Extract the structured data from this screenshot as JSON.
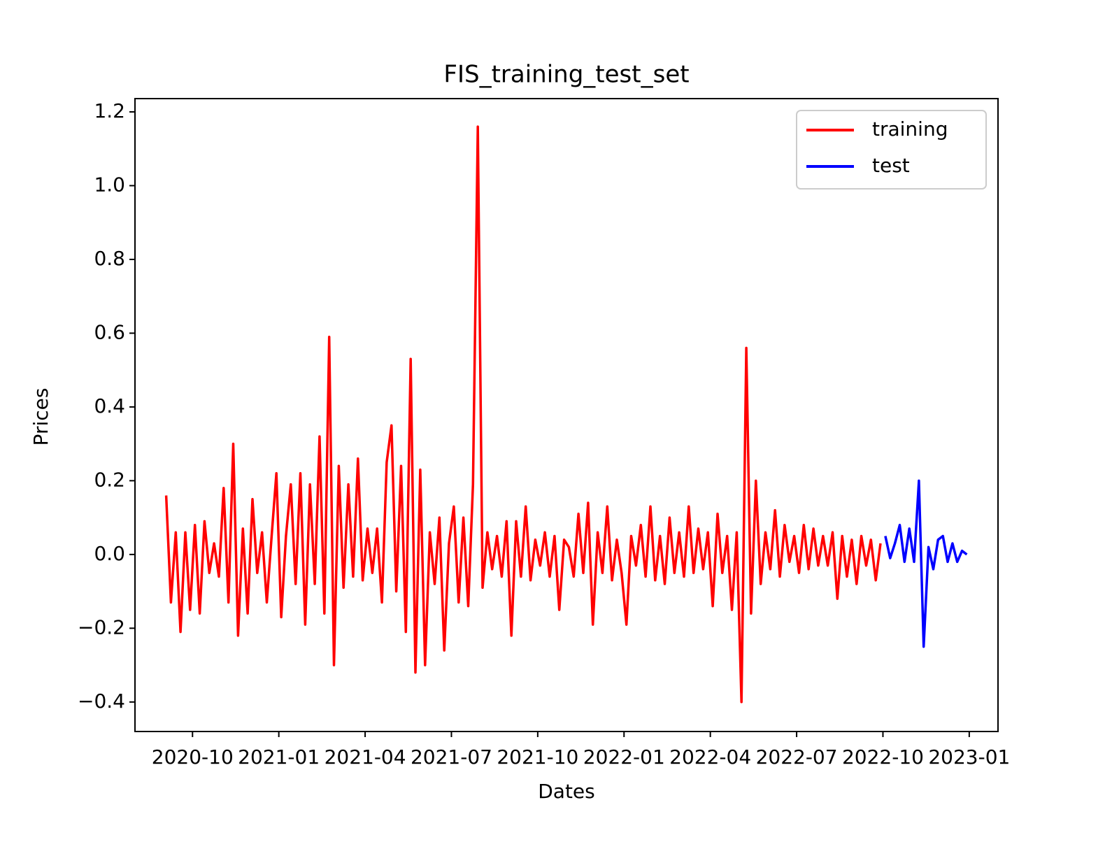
{
  "chart_data": {
    "type": "line",
    "title": "FIS_training_test_set",
    "xlabel": "Dates",
    "ylabel": "Prices",
    "xlim": [
      "2020-08",
      "2023-02"
    ],
    "xticks": [
      "2020-10",
      "2021-01",
      "2021-04",
      "2021-07",
      "2021-10",
      "2022-01",
      "2022-04",
      "2022-07",
      "2022-10",
      "2023-01"
    ],
    "ylim": [
      -0.48,
      1.236
    ],
    "yticks": [
      {
        "value": -0.4,
        "label": "−0.4"
      },
      {
        "value": -0.2,
        "label": "−0.2"
      },
      {
        "value": 0,
        "label": "0.0"
      },
      0.2,
      0.4,
      0.6,
      0.8,
      {
        "value": 1,
        "label": "1.0"
      },
      1.2
    ],
    "legend": "upper right",
    "series": [
      {
        "name": "training",
        "color": "#ff0000",
        "x": [
          "2020-09",
          "2020-09",
          "2020-09",
          "2020-09",
          "2020-09",
          "2020-09",
          "2020-10",
          "2020-10",
          "2020-10",
          "2020-10",
          "2020-10",
          "2020-10",
          "2020-11",
          "2020-11",
          "2020-11",
          "2020-11",
          "2020-11",
          "2020-11",
          "2020-12",
          "2020-12",
          "2020-12",
          "2020-12",
          "2020-12",
          "2020-12",
          "2021-01",
          "2021-01",
          "2021-01",
          "2021-01",
          "2021-01",
          "2021-01",
          "2021-02",
          "2021-02",
          "2021-02",
          "2021-02",
          "2021-02",
          "2021-02",
          "2021-03",
          "2021-03",
          "2021-03",
          "2021-03",
          "2021-03",
          "2021-03",
          "2021-04",
          "2021-04",
          "2021-04",
          "2021-04",
          "2021-04",
          "2021-04",
          "2021-05",
          "2021-05",
          "2021-05",
          "2021-05",
          "2021-05",
          "2021-05",
          "2021-06",
          "2021-06",
          "2021-06",
          "2021-06",
          "2021-06",
          "2021-06",
          "2021-07",
          "2021-07",
          "2021-07",
          "2021-07",
          "2021-07",
          "2021-07",
          "2021-08",
          "2021-08",
          "2021-08",
          "2021-08",
          "2021-08",
          "2021-08",
          "2021-09",
          "2021-09",
          "2021-09",
          "2021-09",
          "2021-09",
          "2021-09",
          "2021-10",
          "2021-10",
          "2021-10",
          "2021-10",
          "2021-10",
          "2021-10",
          "2021-11",
          "2021-11",
          "2021-11",
          "2021-11",
          "2021-11",
          "2021-11",
          "2021-12",
          "2021-12",
          "2021-12",
          "2021-12",
          "2021-12",
          "2021-12",
          "2022-01",
          "2022-01",
          "2022-01",
          "2022-01",
          "2022-01",
          "2022-01",
          "2022-02",
          "2022-02",
          "2022-02",
          "2022-02",
          "2022-02",
          "2022-02",
          "2022-03",
          "2022-03",
          "2022-03",
          "2022-03",
          "2022-03",
          "2022-03",
          "2022-04",
          "2022-04",
          "2022-04",
          "2022-04",
          "2022-04",
          "2022-04",
          "2022-05",
          "2022-05",
          "2022-05",
          "2022-05",
          "2022-05",
          "2022-05",
          "2022-06",
          "2022-06",
          "2022-06",
          "2022-06",
          "2022-06",
          "2022-06",
          "2022-07",
          "2022-07",
          "2022-07",
          "2022-07",
          "2022-07",
          "2022-07",
          "2022-08",
          "2022-08",
          "2022-08",
          "2022-08",
          "2022-08",
          "2022-08",
          "2022-09",
          "2022-09",
          "2022-09",
          "2022-09",
          "2022-09",
          "2022-09"
        ],
        "values": [
          0.16,
          -0.13,
          0.06,
          -0.21,
          0.06,
          -0.15,
          0.08,
          -0.16,
          0.09,
          -0.05,
          0.03,
          -0.06,
          0.18,
          -0.13,
          0.3,
          -0.22,
          0.07,
          -0.16,
          0.15,
          -0.05,
          0.06,
          -0.13,
          0.05,
          0.22,
          -0.17,
          0.05,
          0.19,
          -0.08,
          0.22,
          -0.19,
          0.19,
          -0.08,
          0.32,
          -0.16,
          0.59,
          -0.3,
          0.24,
          -0.09,
          0.19,
          -0.06,
          0.26,
          -0.07,
          0.07,
          -0.05,
          0.07,
          -0.13,
          0.25,
          0.35,
          -0.1,
          0.24,
          -0.21,
          0.53,
          -0.32,
          0.23,
          -0.3,
          0.06,
          -0.08,
          0.1,
          -0.26,
          0.03,
          0.13,
          -0.13,
          0.1,
          -0.14,
          0.19,
          1.16,
          -0.09,
          0.06,
          -0.04,
          0.05,
          -0.06,
          0.09,
          -0.22,
          0.09,
          -0.06,
          0.13,
          -0.07,
          0.04,
          -0.03,
          0.06,
          -0.06,
          0.05,
          -0.15,
          0.04,
          0.02,
          -0.06,
          0.11,
          -0.05,
          0.14,
          -0.19,
          0.06,
          -0.05,
          0.13,
          -0.07,
          0.04,
          -0.05,
          -0.19,
          0.05,
          -0.03,
          0.08,
          -0.06,
          0.13,
          -0.07,
          0.05,
          -0.08,
          0.1,
          -0.05,
          0.06,
          -0.06,
          0.13,
          -0.05,
          0.07,
          -0.04,
          0.06,
          -0.14,
          0.11,
          -0.05,
          0.05,
          -0.15,
          0.06,
          -0.4,
          0.56,
          -0.16,
          0.2,
          -0.08,
          0.06,
          -0.04,
          0.12,
          -0.06,
          0.08,
          -0.02,
          0.05,
          -0.05,
          0.08,
          -0.04,
          0.07,
          -0.03,
          0.05,
          -0.03,
          0.06,
          -0.12,
          0.05,
          -0.06,
          0.04,
          -0.08,
          0.05,
          -0.03,
          0.04,
          -0.07,
          0.03
        ]
      },
      {
        "name": "test",
        "color": "#0000ff",
        "x": [
          "2022-10",
          "2022-10",
          "2022-10",
          "2022-10",
          "2022-10",
          "2022-10",
          "2022-11",
          "2022-11",
          "2022-11",
          "2022-11",
          "2022-11",
          "2022-11",
          "2022-12",
          "2022-12",
          "2022-12",
          "2022-12",
          "2022-12",
          "2022-12"
        ],
        "values": [
          0.05,
          -0.01,
          0.03,
          0.08,
          -0.02,
          0.07,
          -0.02,
          0.2,
          -0.25,
          0.02,
          -0.04,
          0.04,
          0.05,
          -0.02,
          0.03,
          -0.02,
          0.01,
          0
        ]
      }
    ]
  }
}
